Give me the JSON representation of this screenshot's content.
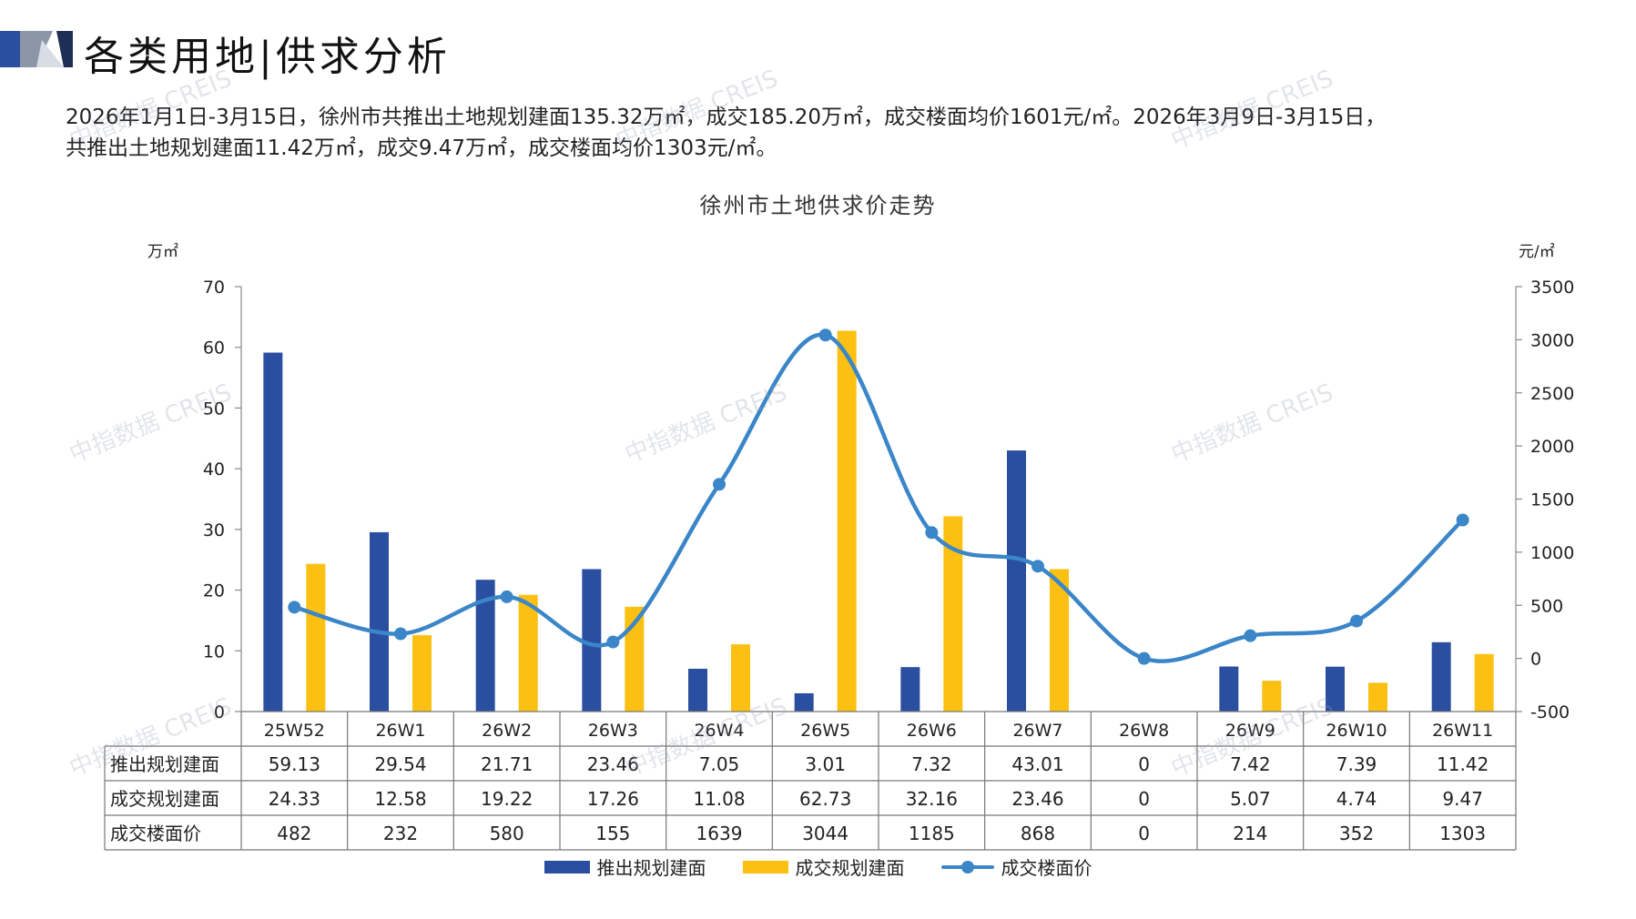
{
  "header": {
    "title": "各类用地|供求分析"
  },
  "summary": {
    "line1": "2026年1月1日-3月15日，徐州市共推出土地规划建面135.32万㎡，成交185.20万㎡，成交楼面均价1601元/㎡。2026年3月9日-3月15日，",
    "line2": "共推出土地规划建面11.42万㎡，成交9.47万㎡，成交楼面均价1303元/㎡。"
  },
  "watermark": "中指数据 CREIS",
  "colors": {
    "supply": "#2b4fa0",
    "deal": "#fbc011",
    "price": "#3b86c8"
  },
  "chart_data": {
    "type": "bar",
    "title": "徐州市土地供求价走势",
    "ylabel": "万㎡",
    "y2label": "元/㎡",
    "ylim": [
      0,
      70
    ],
    "yticks": [
      0,
      10,
      20,
      30,
      40,
      50,
      60,
      70
    ],
    "y2lim": [
      -500,
      3500
    ],
    "y2ticks": [
      -500,
      0,
      500,
      1000,
      1500,
      2000,
      2500,
      3000,
      3500
    ],
    "categories": [
      "25W52",
      "26W1",
      "26W2",
      "26W3",
      "26W4",
      "26W5",
      "26W6",
      "26W7",
      "26W8",
      "26W9",
      "26W10",
      "26W11"
    ],
    "series": [
      {
        "name": "推出规划建面",
        "type": "bar",
        "axis": "left",
        "values": [
          59.13,
          29.54,
          21.71,
          23.46,
          7.05,
          3.01,
          7.32,
          43.01,
          0,
          7.42,
          7.39,
          11.42
        ],
        "labels": [
          "59.13",
          "29.54",
          "21.71",
          "23.46",
          "7.05",
          "3.01",
          "7.32",
          "43.01",
          "0",
          "7.42",
          "7.39",
          "11.42"
        ]
      },
      {
        "name": "成交规划建面",
        "type": "bar",
        "axis": "left",
        "values": [
          24.33,
          12.58,
          19.22,
          17.26,
          11.08,
          62.73,
          32.16,
          23.46,
          0,
          5.07,
          4.74,
          9.47
        ],
        "labels": [
          "24.33",
          "12.58",
          "19.22",
          "17.26",
          "11.08",
          "62.73",
          "32.16",
          "23.46",
          "0",
          "5.07",
          "4.74",
          "9.47"
        ]
      },
      {
        "name": "成交楼面价",
        "type": "line",
        "axis": "right",
        "values": [
          482,
          232,
          580,
          155,
          1639,
          3044,
          1185,
          868,
          0,
          214,
          352,
          1303
        ],
        "labels": [
          "482",
          "232",
          "580",
          "155",
          "1639",
          "3044",
          "1185",
          "868",
          "0",
          "214",
          "352",
          "1303"
        ]
      }
    ],
    "legend_position": "bottom",
    "data_table": true
  }
}
